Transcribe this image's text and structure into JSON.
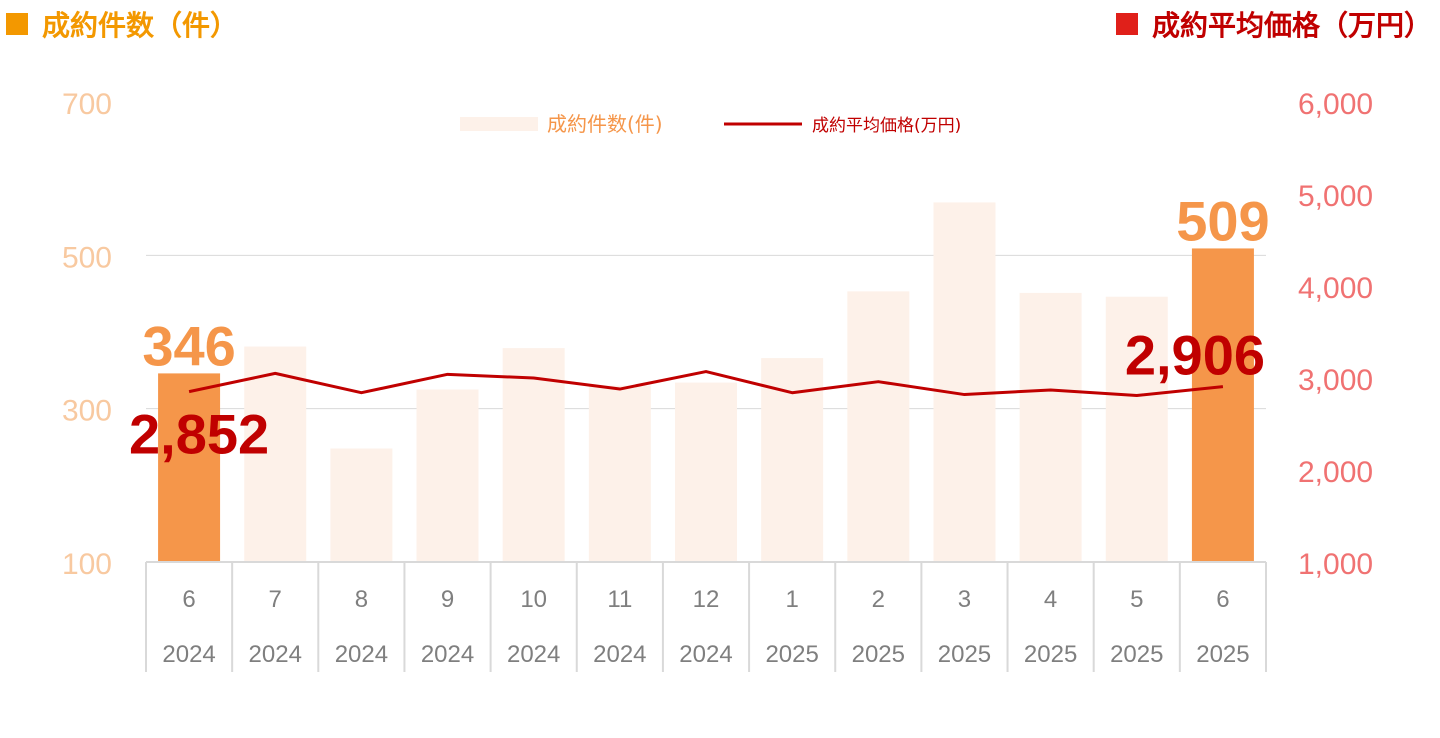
{
  "headers": {
    "left": "成約件数（件）",
    "right": "成約平均価格（万円）"
  },
  "colors": {
    "bar_highlight": "#f5964a",
    "bar_normal": "#fdf1e9",
    "line": "#c00000",
    "left_axis": "#f8c9a0",
    "right_axis": "#f07272",
    "grid": "#d9d9d9",
    "category_text": "#7f7f7f"
  },
  "chart_data": {
    "type": "bar",
    "categories": [
      "6",
      "7",
      "8",
      "9",
      "10",
      "11",
      "12",
      "1",
      "2",
      "3",
      "4",
      "5",
      "6"
    ],
    "years": [
      "2024",
      "2024",
      "2024",
      "2024",
      "2024",
      "2024",
      "2024",
      "2025",
      "2025",
      "2025",
      "2025",
      "2025",
      "2025"
    ],
    "series": [
      {
        "name": "成約件数(件)",
        "type": "bar",
        "axis": "left",
        "values": [
          346,
          381,
          248,
          325,
          379,
          330,
          334,
          366,
          453,
          569,
          451,
          446,
          509
        ],
        "highlight_indices": [
          0,
          12
        ]
      },
      {
        "name": "成約平均価格(万円)",
        "type": "line",
        "axis": "right",
        "values": [
          2852,
          3050,
          2840,
          3040,
          3000,
          2880,
          3070,
          2840,
          2960,
          2820,
          2870,
          2810,
          2906
        ]
      }
    ],
    "y_left": {
      "ylim": [
        100,
        700
      ],
      "ticks": [
        "100",
        "300",
        "500",
        "700"
      ]
    },
    "y_right": {
      "ylim": [
        1000,
        6000
      ],
      "ticks": [
        "1,000",
        "2,000",
        "3,000",
        "4,000",
        "5,000",
        "6,000"
      ]
    },
    "gridlines": [
      300,
      500
    ],
    "annotations": [
      {
        "series": 0,
        "index": 0,
        "label": "346"
      },
      {
        "series": 0,
        "index": 12,
        "label": "509"
      },
      {
        "series": 1,
        "index": 0,
        "label": "2,852"
      },
      {
        "series": 1,
        "index": 12,
        "label": "2,906"
      }
    ],
    "legend": {
      "position": "top-center"
    }
  }
}
